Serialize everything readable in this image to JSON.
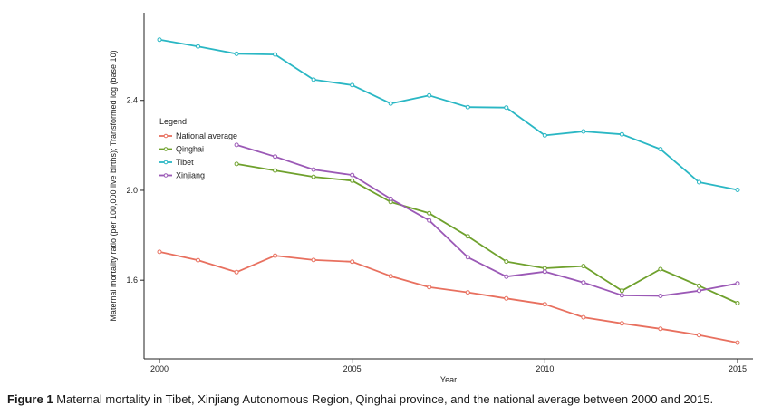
{
  "chart_data": {
    "type": "line",
    "title": "",
    "xlabel": "Year",
    "ylabel": "Maternal mortality ratio (per 100,000 live births); Transformed log (base 10)",
    "xlim": [
      1999.6,
      2015.4
    ],
    "ylim": [
      1.25,
      2.79
    ],
    "x_ticks": [
      2000,
      2005,
      2010,
      2015
    ],
    "y_ticks": [
      1.6,
      2.0,
      2.4
    ],
    "y_tick_labels": [
      "1.6",
      "2.0",
      "2.4"
    ],
    "legend": {
      "title": "Legend",
      "position": "left"
    },
    "series": [
      {
        "name": "National average",
        "color": "#e8705f",
        "x": [
          2000,
          2001,
          2002,
          2003,
          2004,
          2005,
          2006,
          2007,
          2008,
          2009,
          2010,
          2011,
          2012,
          2013,
          2014,
          2015
        ],
        "y": [
          1.726,
          1.689,
          1.636,
          1.709,
          1.69,
          1.682,
          1.618,
          1.569,
          1.546,
          1.519,
          1.493,
          1.435,
          1.408,
          1.384,
          1.356,
          1.322
        ]
      },
      {
        "name": "Qinghai",
        "color": "#6fa12d",
        "x": [
          2002,
          2003,
          2004,
          2005,
          2006,
          2007,
          2008,
          2009,
          2010,
          2011,
          2012,
          2013,
          2014,
          2015
        ],
        "y": [
          2.117,
          2.088,
          2.06,
          2.043,
          1.948,
          1.898,
          1.795,
          1.683,
          1.653,
          1.663,
          1.553,
          1.649,
          1.575,
          1.498
        ]
      },
      {
        "name": "Tibet",
        "color": "#2ab7c4",
        "x": [
          2000,
          2001,
          2002,
          2003,
          2004,
          2005,
          2006,
          2007,
          2008,
          2009,
          2010,
          2011,
          2012,
          2013,
          2014,
          2015
        ],
        "y": [
          2.67,
          2.64,
          2.607,
          2.604,
          2.492,
          2.468,
          2.386,
          2.422,
          2.37,
          2.368,
          2.244,
          2.262,
          2.249,
          2.183,
          2.036,
          2.002
        ]
      },
      {
        "name": "Xinjiang",
        "color": "#9b59b6",
        "x": [
          2002,
          2003,
          2004,
          2005,
          2006,
          2007,
          2008,
          2009,
          2010,
          2011,
          2012,
          2013,
          2014,
          2015
        ],
        "y": [
          2.202,
          2.15,
          2.092,
          2.068,
          1.962,
          1.866,
          1.702,
          1.616,
          1.638,
          1.59,
          1.533,
          1.53,
          1.553,
          1.586
        ]
      }
    ]
  },
  "caption": {
    "label": "Figure 1",
    "text": "Maternal mortality in Tibet, Xinjiang Autonomous Region, Qinghai province, and the national average between 2000 and 2015."
  }
}
